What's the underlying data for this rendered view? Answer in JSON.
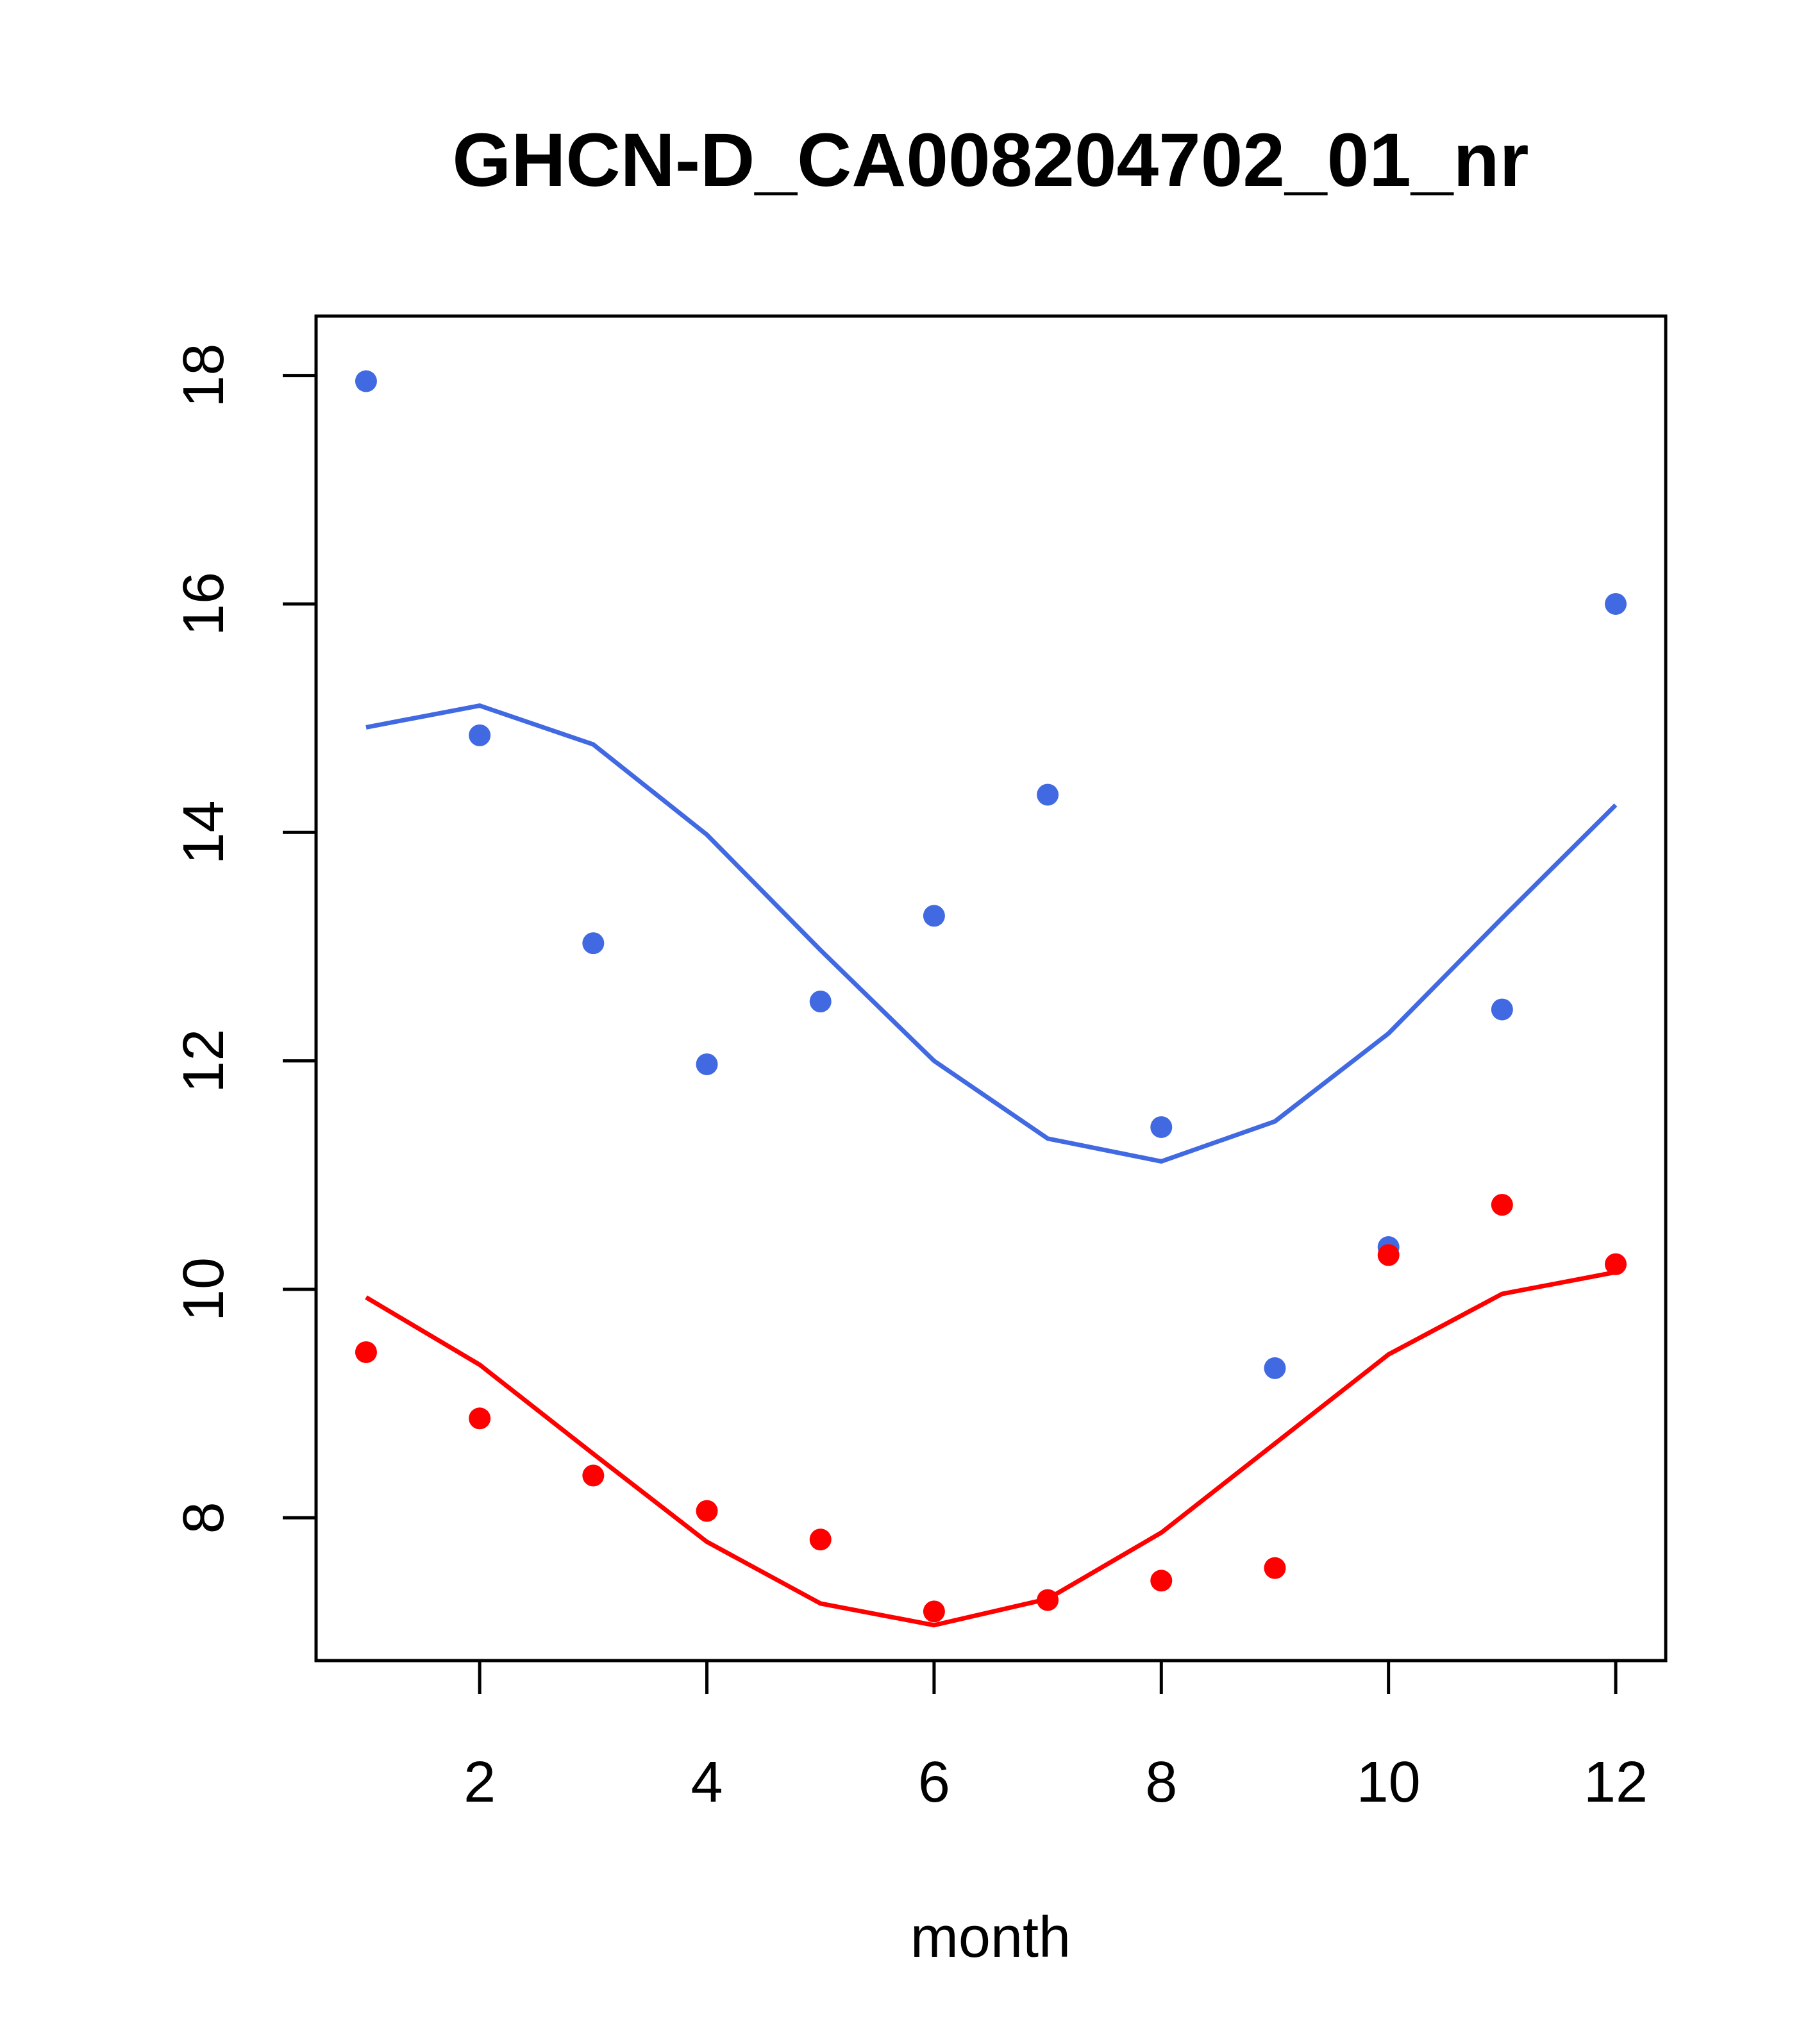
{
  "chart_data": {
    "type": "scatter",
    "title": "GHCN-D_CA008204702_01_nr",
    "xlabel": "month",
    "ylabel": "",
    "xlim": [
      0.56,
      12.44
    ],
    "ylim": [
      6.75,
      18.52
    ],
    "x_ticks": [
      2,
      4,
      6,
      8,
      10,
      12
    ],
    "y_ticks": [
      8,
      10,
      12,
      14,
      16,
      18
    ],
    "grid": false,
    "legend": "none",
    "x": [
      1,
      2,
      3,
      4,
      5,
      6,
      7,
      8,
      9,
      10,
      11,
      12
    ],
    "series": [
      {
        "color": "#4169e1",
        "points": [
          17.95,
          14.85,
          13.03,
          11.97,
          12.52,
          13.27,
          14.33,
          11.42,
          9.31,
          10.37,
          12.45,
          16.0
        ],
        "line": [
          14.92,
          15.11,
          14.77,
          13.98,
          12.97,
          12.0,
          11.32,
          11.12,
          11.47,
          12.24,
          13.25,
          14.24
        ]
      },
      {
        "color": "#ff0000",
        "points": [
          9.45,
          8.87,
          8.37,
          8.06,
          7.81,
          7.18,
          7.28,
          7.45,
          7.56,
          10.3,
          10.74,
          10.22
        ],
        "line": [
          9.93,
          9.34,
          8.56,
          7.79,
          7.25,
          7.06,
          7.29,
          7.87,
          8.65,
          9.43,
          9.96,
          10.15
        ]
      }
    ]
  }
}
